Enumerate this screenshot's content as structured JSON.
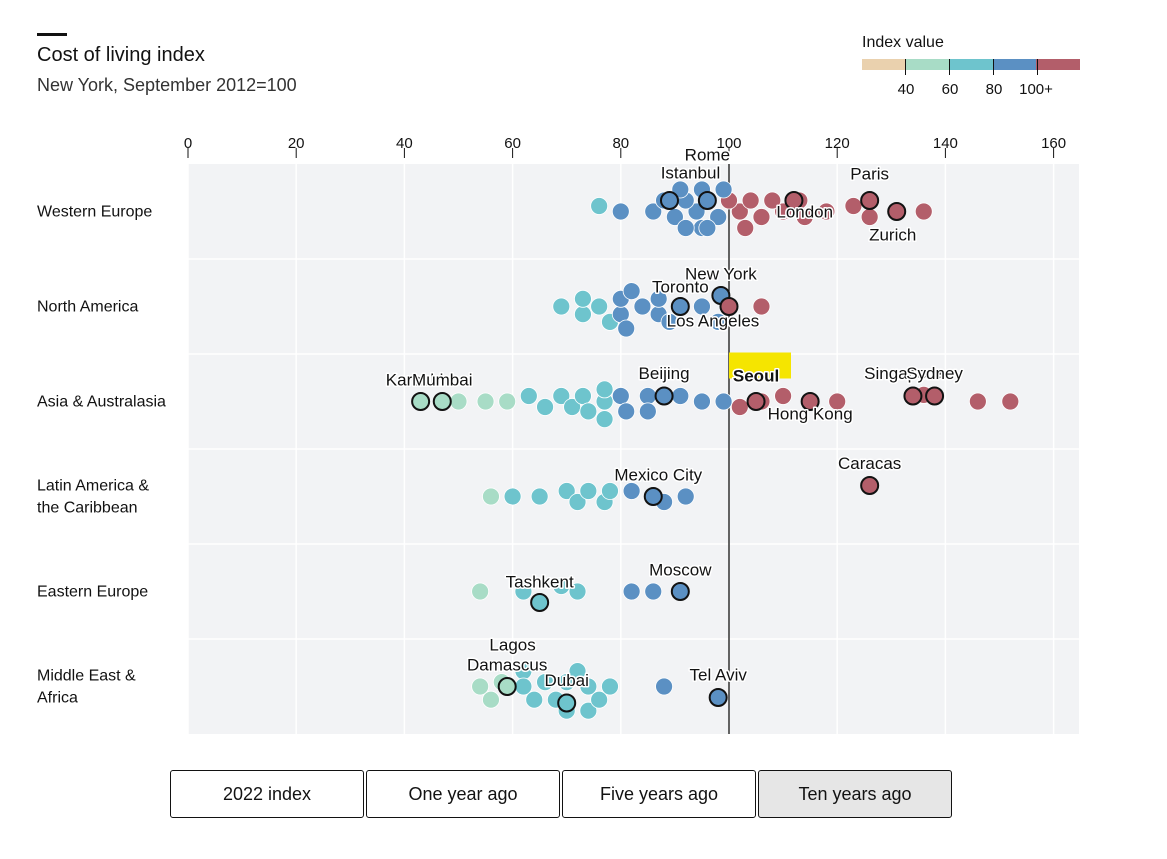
{
  "header": {
    "title": "Cost of living index",
    "subtitle": "New York, September 2012=100"
  },
  "legend": {
    "title": "Index value",
    "labels": [
      "40",
      "60",
      "80",
      "100+"
    ],
    "colors": [
      "#ead1ae",
      "#a8dcc6",
      "#6ec4cd",
      "#5b90c3",
      "#b35e6a"
    ]
  },
  "buttons": [
    "2022 index",
    "One year ago",
    "Five years ago",
    "Ten years ago"
  ],
  "active_button": 3,
  "highlight_color": "#f5e500",
  "chart_data": {
    "type": "scatter",
    "title": "Cost of living index",
    "subtitle": "New York, September 2012=100",
    "xlim": [
      0,
      165
    ],
    "xticks": [
      0,
      20,
      40,
      60,
      80,
      100,
      120,
      140,
      160
    ],
    "reference_line": 100,
    "regions": [
      {
        "label": [
          "Western Europe"
        ],
        "points": [
          [
            76,
            -0.5
          ],
          [
            80,
            0
          ],
          [
            86,
            0
          ],
          [
            90,
            0.5
          ],
          [
            94,
            0
          ],
          [
            98,
            0.5
          ],
          [
            102,
            0
          ],
          [
            106,
            0.5
          ],
          [
            110,
            0
          ],
          [
            114,
            0.5
          ],
          [
            118,
            0
          ],
          [
            123,
            -0.5
          ],
          [
            126,
            0.5
          ],
          [
            131,
            0
          ],
          [
            136,
            0
          ],
          [
            88,
            -1
          ],
          [
            92,
            -1
          ],
          [
            96,
            -1
          ],
          [
            100,
            -1
          ],
          [
            104,
            -1
          ],
          [
            108,
            -1
          ],
          [
            113,
            -1
          ],
          [
            91,
            -2
          ],
          [
            95,
            -2
          ],
          [
            99,
            -2
          ],
          [
            95,
            1.5
          ],
          [
            103,
            1.5
          ],
          [
            92,
            1.5
          ],
          [
            96,
            1.5
          ]
        ],
        "cities": [
          {
            "name": "Rome",
            "value": 96,
            "label": "Rome"
          },
          {
            "name": "Istanbul",
            "value": 89,
            "label": "Istanbul"
          },
          {
            "name": "Paris",
            "value": 126,
            "label": "Paris"
          },
          {
            "name": "London",
            "value": 112,
            "label": "London"
          },
          {
            "name": "Zurich",
            "value": 131,
            "label": "Zurich"
          }
        ]
      },
      {
        "label": [
          "North America"
        ],
        "points": [
          [
            69,
            0
          ],
          [
            73,
            0.7
          ],
          [
            73,
            -0.7
          ],
          [
            76,
            0
          ],
          [
            78,
            1.4
          ],
          [
            80,
            0.7
          ],
          [
            80,
            -0.7
          ],
          [
            82,
            -1.4
          ],
          [
            81,
            2
          ],
          [
            84,
            0
          ],
          [
            87,
            0.7
          ],
          [
            87,
            -0.7
          ],
          [
            89,
            1.4
          ],
          [
            91,
            0
          ],
          [
            95,
            0
          ],
          [
            98,
            1.4
          ],
          [
            106,
            0
          ]
        ],
        "cities": [
          {
            "name": "Toronto",
            "value": 91,
            "label": "Toronto"
          },
          {
            "name": "New York",
            "value": 98.5,
            "label": "New York"
          },
          {
            "name": "Los Angeles",
            "value": 100,
            "label": "Los Angeles"
          }
        ]
      },
      {
        "label": [
          "Asia & Australasia"
        ],
        "points": [
          [
            50,
            0
          ],
          [
            55,
            0
          ],
          [
            59,
            0
          ],
          [
            63,
            -0.5
          ],
          [
            66,
            0.5
          ],
          [
            69,
            -0.5
          ],
          [
            71,
            0.5
          ],
          [
            73,
            -0.5
          ],
          [
            74,
            0.9
          ],
          [
            77,
            0
          ],
          [
            77,
            -1.1
          ],
          [
            77,
            1.6
          ],
          [
            80,
            -0.5
          ],
          [
            81,
            0.9
          ],
          [
            85,
            -0.5
          ],
          [
            85,
            0.9
          ],
          [
            91,
            -0.5
          ],
          [
            95,
            0
          ],
          [
            99,
            0
          ],
          [
            102,
            0.5
          ],
          [
            106,
            0
          ],
          [
            110,
            -0.5
          ],
          [
            120,
            0
          ],
          [
            136,
            -0.6
          ],
          [
            146,
            0
          ],
          [
            152,
            0
          ]
        ],
        "cities": [
          {
            "name": "Karachi",
            "value": 43,
            "label": "Karachi"
          },
          {
            "name": "Mumbai",
            "value": 47,
            "label": "Mumbai"
          },
          {
            "name": "Beijing",
            "value": 88,
            "label": "Beijing"
          },
          {
            "name": "Seoul",
            "value": 105,
            "label": "Seoul"
          },
          {
            "name": "Hong Kong",
            "value": 115,
            "label": "Hong Kong"
          },
          {
            "name": "Singapore",
            "value": 134,
            "label": "Singapore"
          },
          {
            "name": "Sydney",
            "value": 138,
            "label": "Sydney"
          }
        ]
      },
      {
        "label": [
          "Latin America &",
          "the Caribbean"
        ],
        "points": [
          [
            56,
            0
          ],
          [
            60,
            0
          ],
          [
            65,
            0
          ],
          [
            70,
            -0.5
          ],
          [
            72,
            0.5
          ],
          [
            74,
            -0.5
          ],
          [
            77,
            0.5
          ],
          [
            78,
            -0.5
          ],
          [
            82,
            -0.5
          ],
          [
            88,
            0.5
          ],
          [
            92,
            0
          ]
        ],
        "cities": [
          {
            "name": "Mexico City",
            "value": 86,
            "label": "Mexico City"
          },
          {
            "name": "Caracas",
            "value": 126,
            "label": "Caracas"
          }
        ]
      },
      {
        "label": [
          "Eastern Europe"
        ],
        "points": [
          [
            54,
            0
          ],
          [
            62,
            0
          ],
          [
            69,
            -0.5
          ],
          [
            72,
            0
          ],
          [
            82,
            0
          ],
          [
            86,
            0
          ]
        ],
        "cities": [
          {
            "name": "Tashkent",
            "value": 65,
            "label": "Tashkent"
          },
          {
            "name": "Moscow",
            "value": 91,
            "label": "Moscow"
          }
        ]
      },
      {
        "label": [
          "Middle East &",
          "Africa"
        ],
        "points": [
          [
            54,
            0
          ],
          [
            56,
            1.2
          ],
          [
            58,
            -0.4
          ],
          [
            62,
            -1.4
          ],
          [
            62,
            0
          ],
          [
            64,
            1.2
          ],
          [
            66,
            -0.4
          ],
          [
            68,
            1.2
          ],
          [
            70,
            -0.4
          ],
          [
            70,
            2.2
          ],
          [
            72,
            -1.4
          ],
          [
            74,
            0
          ],
          [
            74,
            2.2
          ],
          [
            76,
            1.2
          ],
          [
            78,
            0
          ],
          [
            88,
            0
          ]
        ],
        "cities": [
          {
            "name": "Lagos",
            "value": 60,
            "label": "Lagos"
          },
          {
            "name": "Damascus",
            "value": 59,
            "label": "Damascus"
          },
          {
            "name": "Dubai",
            "value": 70,
            "label": "Dubai"
          },
          {
            "name": "Tel Aviv",
            "value": 98,
            "label": "Tel Aviv"
          }
        ]
      }
    ]
  }
}
